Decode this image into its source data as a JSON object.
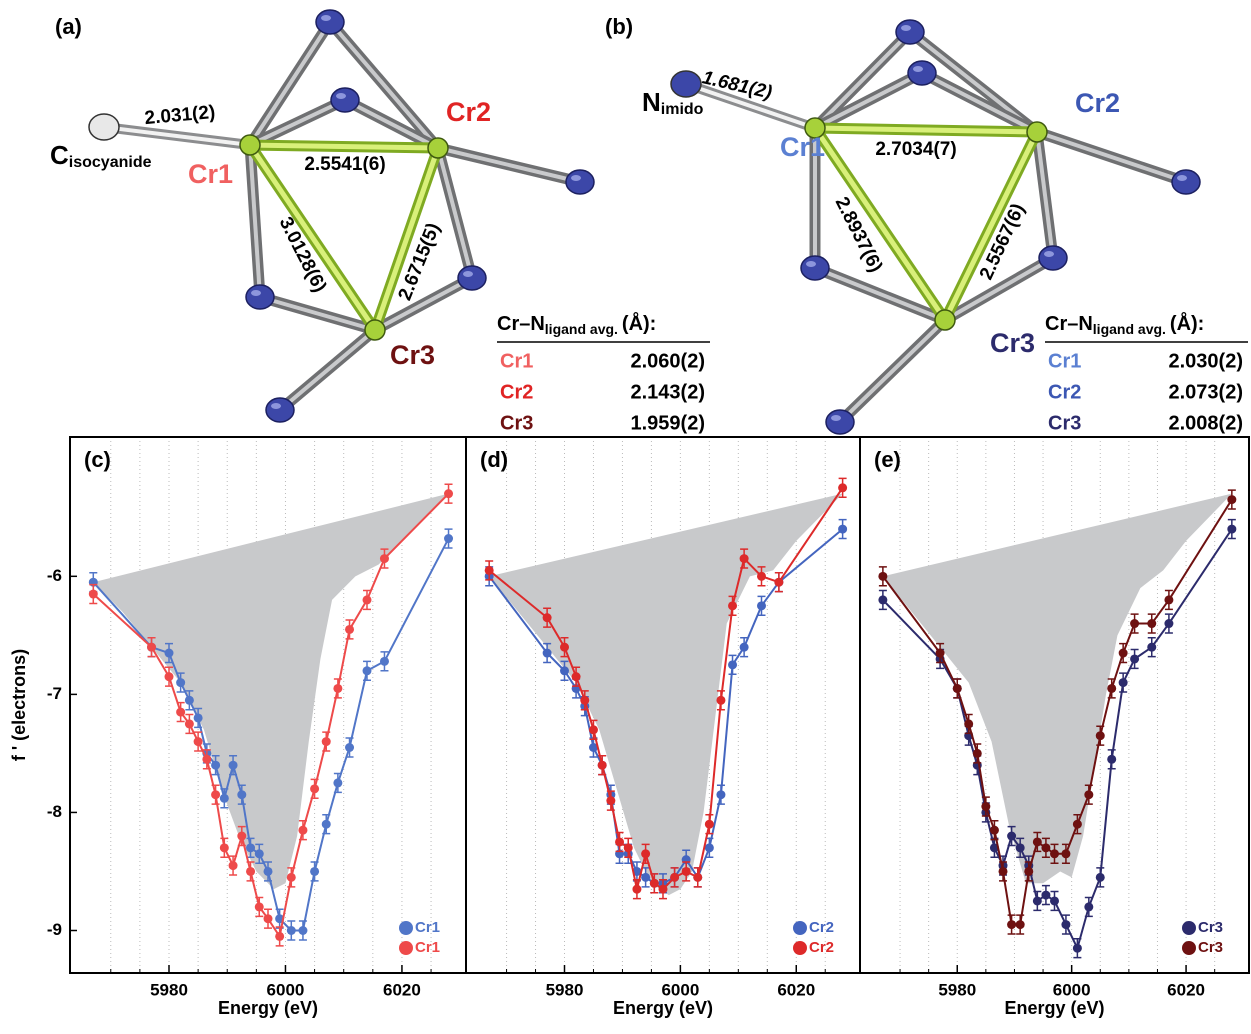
{
  "structures": [
    {
      "label": "(a)",
      "ligand": "C",
      "ligand_sub": "isocyanide",
      "ligand_distance": "2.031(2)",
      "atoms": [
        {
          "name": "Cr1",
          "color": "#f06060"
        },
        {
          "name": "Cr2",
          "color": "#e02424"
        },
        {
          "name": "Cr3",
          "color": "#6e1111"
        }
      ],
      "distances": [
        "2.5541(6)",
        "3.0128(6)",
        "2.6715(5)"
      ],
      "table": {
        "header": "Cr–N",
        "header_sub": "ligand avg.",
        "header_unit": "(Å):",
        "rows": [
          [
            "Cr1",
            "2.060(2)"
          ],
          [
            "Cr2",
            "2.143(2)"
          ],
          [
            "Cr3",
            "1.959(2)"
          ]
        ]
      }
    },
    {
      "label": "(b)",
      "ligand": "N",
      "ligand_sub": "imido",
      "ligand_distance": "1.681(2)",
      "atoms": [
        {
          "name": "Cr1",
          "color": "#5b80d2"
        },
        {
          "name": "Cr2",
          "color": "#3c57b3"
        },
        {
          "name": "Cr3",
          "color": "#2c2b6c"
        }
      ],
      "distances": [
        "2.7034(7)",
        "2.8937(6)",
        "2.5567(6)"
      ],
      "table": {
        "header": "Cr–N",
        "header_sub": "ligand avg.",
        "header_unit": "(Å):",
        "rows": [
          [
            "Cr1",
            "2.030(2)"
          ],
          [
            "Cr2",
            "2.073(2)"
          ],
          [
            "Cr3",
            "2.008(2)"
          ]
        ]
      }
    }
  ],
  "chart_data": [
    {
      "type": "line",
      "label": "(c)",
      "xlabel": "Energy (eV)",
      "ylabel": "f ' (electrons)",
      "xlim": [
        5963,
        6031
      ],
      "ylim": [
        -9.36,
        -4.82
      ],
      "xticks": [
        5980,
        6000,
        6020
      ],
      "yticks": [
        -6,
        -7,
        -8,
        -9
      ],
      "xminorticks": [
        5970,
        5975,
        5985,
        5990,
        5995,
        6005,
        6010,
        6015,
        6025
      ],
      "grid": true,
      "legend": "lower right",
      "error": 0.08,
      "area": {
        "color": "#c8c9cb",
        "x": [
          5967,
          5972,
          5977,
          5982,
          5986,
          5989,
          5992,
          5995,
          5998,
          6000,
          6002,
          6004,
          6006,
          6008,
          6012,
          6016,
          6020,
          6028
        ],
        "values": [
          -6.05,
          -6.3,
          -6.6,
          -6.9,
          -7.3,
          -7.8,
          -8.2,
          -8.5,
          -8.65,
          -8.6,
          -8.2,
          -7.4,
          -6.7,
          -6.2,
          -6.0,
          -5.9,
          -5.7,
          -5.3
        ]
      },
      "x": [
        5967,
        5977,
        5980,
        5982,
        5983.5,
        5985,
        5986.5,
        5988,
        5989.5,
        5991,
        5992.5,
        5994,
        5995.5,
        5997,
        5999,
        6001,
        6003,
        6005,
        6007,
        6009,
        6011,
        6014,
        6017,
        6028
      ],
      "series": [
        {
          "name": "Cr1",
          "color": "#5176c8",
          "values": [
            -6.05,
            -6.6,
            -6.65,
            -6.9,
            -7.05,
            -7.2,
            -7.5,
            -7.6,
            -7.88,
            -7.6,
            -7.85,
            -8.3,
            -8.35,
            -8.5,
            -8.9,
            -9.0,
            -9.0,
            -8.5,
            -8.1,
            -7.75,
            -7.45,
            -6.8,
            -6.72,
            -5.68
          ]
        },
        {
          "name": "Cr1",
          "color": "#ee4a4a",
          "values": [
            -6.15,
            -6.6,
            -6.85,
            -7.15,
            -7.25,
            -7.4,
            -7.55,
            -7.85,
            -8.3,
            -8.45,
            -8.2,
            -8.5,
            -8.8,
            -8.9,
            -9.05,
            -8.55,
            -8.15,
            -7.8,
            -7.4,
            -6.95,
            -6.45,
            -6.2,
            -5.85,
            -5.3
          ]
        }
      ]
    },
    {
      "type": "line",
      "label": "(d)",
      "xlabel": "Energy (eV)",
      "xlim": [
        5963,
        6031
      ],
      "ylim": [
        -9.36,
        -4.82
      ],
      "xticks": [
        5980,
        6000,
        6020
      ],
      "xminorticks": [
        5970,
        5975,
        5985,
        5990,
        5995,
        6005,
        6010,
        6015,
        6025
      ],
      "grid": true,
      "legend": "lower right",
      "error": 0.08,
      "area": {
        "color": "#c8c9cb",
        "x": [
          5967,
          5972,
          5977,
          5982,
          5986,
          5989,
          5992,
          5995,
          5998,
          6000,
          6002,
          6004,
          6006,
          6008,
          6012,
          6016,
          6020,
          6028
        ],
        "values": [
          -6.0,
          -6.3,
          -6.6,
          -6.9,
          -7.3,
          -7.8,
          -8.3,
          -8.6,
          -8.7,
          -8.65,
          -8.5,
          -8.0,
          -7.2,
          -6.4,
          -6.0,
          -5.95,
          -5.7,
          -5.3
        ]
      },
      "x": [
        5967,
        5977,
        5980,
        5982,
        5983.5,
        5985,
        5986.5,
        5988,
        5989.5,
        5991,
        5992.5,
        5994,
        5995.5,
        5997,
        5999,
        6001,
        6003,
        6005,
        6007,
        6009,
        6011,
        6014,
        6017,
        6028
      ],
      "series": [
        {
          "name": "Cr2",
          "color": "#4465bf",
          "values": [
            -6.0,
            -6.65,
            -6.8,
            -6.95,
            -7.1,
            -7.45,
            -7.6,
            -7.85,
            -8.35,
            -8.35,
            -8.5,
            -8.55,
            -8.6,
            -8.6,
            -8.55,
            -8.4,
            -8.55,
            -8.3,
            -7.85,
            -6.75,
            -6.6,
            -6.25,
            -6.05,
            -5.6
          ]
        },
        {
          "name": "Cr2",
          "color": "#dd2a2a",
          "values": [
            -5.95,
            -6.35,
            -6.6,
            -6.85,
            -7.05,
            -7.3,
            -7.6,
            -7.9,
            -8.25,
            -8.3,
            -8.65,
            -8.35,
            -8.6,
            -8.65,
            -8.55,
            -8.5,
            -8.55,
            -8.1,
            -7.05,
            -6.25,
            -5.85,
            -6.0,
            -6.05,
            -5.25
          ]
        }
      ]
    },
    {
      "type": "line",
      "label": "(e)",
      "xlabel": "Energy (eV)",
      "xlim": [
        5963,
        6031
      ],
      "ylim": [
        -9.36,
        -4.82
      ],
      "xticks": [
        5980,
        6000,
        6020
      ],
      "xminorticks": [
        5970,
        5975,
        5985,
        5990,
        5995,
        6005,
        6010,
        6015,
        6025
      ],
      "grid": true,
      "legend": "lower right",
      "error": 0.08,
      "area": {
        "color": "#c8c9cb",
        "x": [
          5967,
          5972,
          5977,
          5982,
          5986,
          5989,
          5992,
          5995,
          5998,
          6000,
          6002,
          6004,
          6006,
          6008,
          6012,
          6016,
          6020,
          6028
        ],
        "values": [
          -6.0,
          -6.3,
          -6.6,
          -6.9,
          -7.4,
          -8.1,
          -8.6,
          -8.6,
          -8.5,
          -8.55,
          -8.2,
          -7.6,
          -7.0,
          -6.5,
          -6.1,
          -5.95,
          -5.7,
          -5.3
        ]
      },
      "x": [
        5967,
        5977,
        5980,
        5982,
        5983.5,
        5985,
        5986.5,
        5988,
        5989.5,
        5991,
        5992.5,
        5994,
        5995.5,
        5997,
        5999,
        6001,
        6003,
        6005,
        6007,
        6009,
        6011,
        6014,
        6017,
        6028
      ],
      "series": [
        {
          "name": "Cr3",
          "color": "#2c2b6c",
          "values": [
            -6.2,
            -6.7,
            -6.95,
            -7.35,
            -7.6,
            -8.0,
            -8.3,
            -8.45,
            -8.2,
            -8.3,
            -8.45,
            -8.75,
            -8.7,
            -8.75,
            -8.95,
            -9.15,
            -8.8,
            -8.55,
            -7.55,
            -6.9,
            -6.7,
            -6.6,
            -6.4,
            -5.6
          ]
        },
        {
          "name": "Cr3",
          "color": "#6e1111",
          "values": [
            -6.0,
            -6.65,
            -6.95,
            -7.25,
            -7.5,
            -7.95,
            -8.15,
            -8.5,
            -8.95,
            -8.95,
            -8.5,
            -8.25,
            -8.3,
            -8.35,
            -8.35,
            -8.1,
            -7.85,
            -7.35,
            -6.95,
            -6.65,
            -6.4,
            -6.4,
            -6.2,
            -5.35
          ]
        }
      ]
    }
  ]
}
